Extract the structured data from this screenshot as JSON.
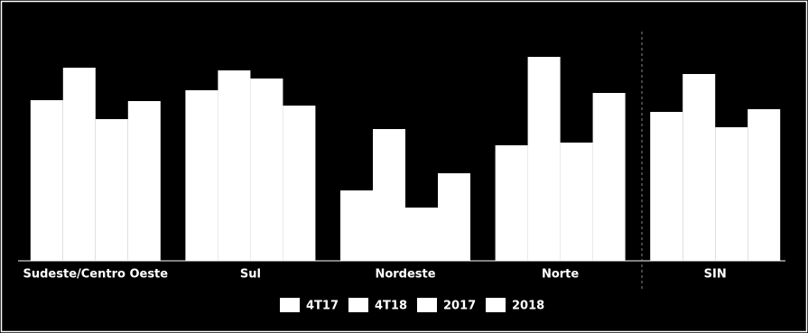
{
  "chart_data": {
    "type": "bar",
    "categories": [
      "Sudeste/Centro Oeste",
      "Sul",
      "Nordeste",
      "Norte",
      "SIN"
    ],
    "series": [
      {
        "name": "4T17",
        "color": "#ffffff",
        "values": [
          178,
          189,
          78,
          128,
          165
        ]
      },
      {
        "name": "4T18",
        "color": "#ffffff",
        "values": [
          214,
          211,
          146,
          226,
          207
        ]
      },
      {
        "name": "2017",
        "color": "#ffffff",
        "values": [
          157,
          202,
          59,
          131,
          148
        ]
      },
      {
        "name": "2018",
        "color": "#ffffff",
        "values": [
          177,
          172,
          97,
          186,
          168
        ]
      }
    ],
    "ylim": [
      0,
      250
    ],
    "grid": false,
    "legend": "bottom"
  }
}
